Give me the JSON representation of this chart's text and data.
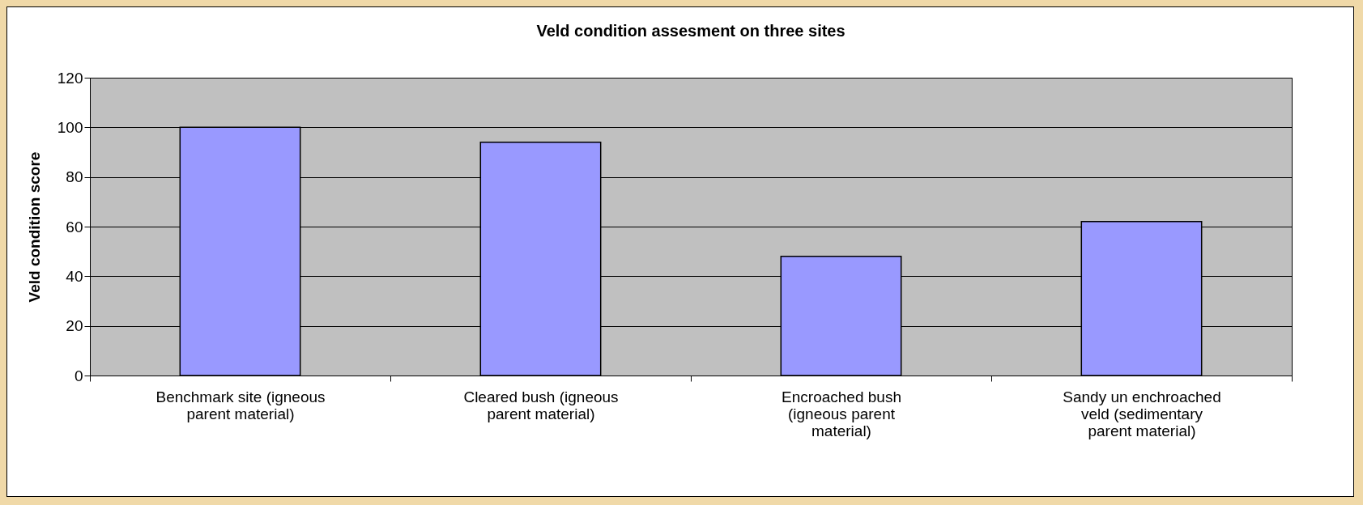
{
  "chart_data": {
    "type": "bar",
    "title": "Veld condition assesment on three sites",
    "ylabel": "Veld condition score",
    "categories": [
      "Benchmark site (igneous parent material)",
      "Cleared bush (igneous parent material)",
      "Encroached bush (igneous parent material)",
      "Sandy un enchroached veld (sedimentary parent material)"
    ],
    "values": [
      100,
      94,
      48,
      62
    ],
    "color": "#9999ff",
    "ylim": [
      0,
      120
    ],
    "yticks": [
      0,
      20,
      40,
      60,
      80,
      100,
      120
    ],
    "grid": "y"
  }
}
